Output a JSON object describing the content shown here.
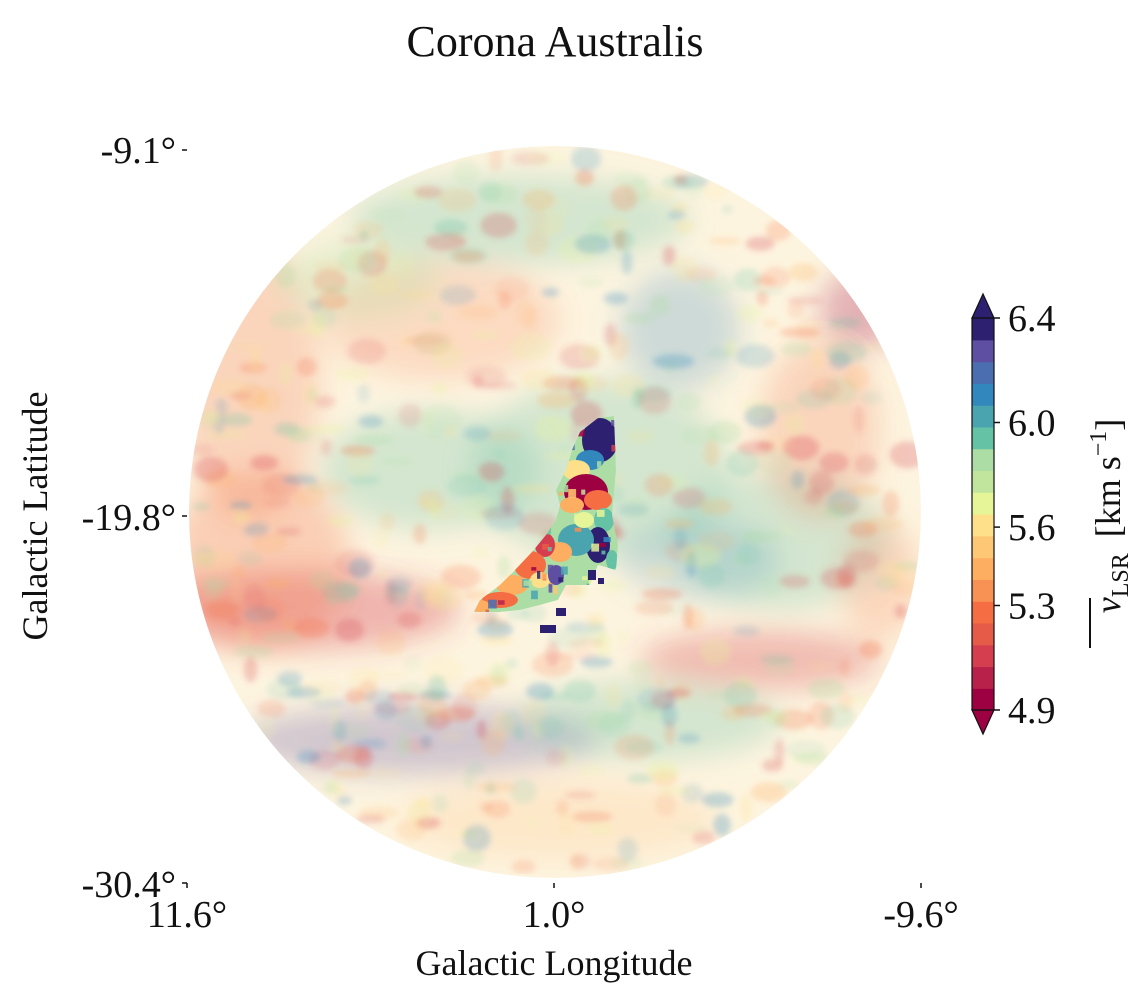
{
  "chart_data": {
    "type": "heatmap",
    "title": "Corona Australis",
    "xlabel": "Galactic Longitude",
    "ylabel": "Galactic Latitude",
    "x_ticks": [
      "11.6°",
      "1.0°",
      "-9.6°"
    ],
    "y_ticks": [
      "-9.1°",
      "-19.8°",
      "-30.4°"
    ],
    "xlim": [
      11.6,
      -9.6
    ],
    "ylim": [
      -30.4,
      -9.1
    ],
    "colorbar": {
      "label_main": "v",
      "label_sub": "LSR",
      "label_unit": "[km s",
      "label_exp": "−1",
      "label_close": "]",
      "ticks": [
        "6.4",
        "6.0",
        "5.6",
        "5.3",
        "4.9"
      ],
      "tick_values": [
        6.4,
        6.0,
        5.6,
        5.3,
        4.9
      ],
      "range": [
        4.9,
        6.4
      ],
      "extend": "both",
      "colormap": "Spectral",
      "levels": 16,
      "colors": [
        "#9e0142",
        "#b8224a",
        "#d53e4f",
        "#e65b47",
        "#f46d43",
        "#f89254",
        "#fdae61",
        "#fdc775",
        "#fee08b",
        "#e6f598",
        "#c2e59e",
        "#abdda4",
        "#66c2a5",
        "#4aa4b0",
        "#3288bd",
        "#4a6eb0",
        "#5e4fa2",
        "#2d2070"
      ]
    },
    "background_field_alpha": 0.35,
    "mask": "circular",
    "grid": false
  }
}
